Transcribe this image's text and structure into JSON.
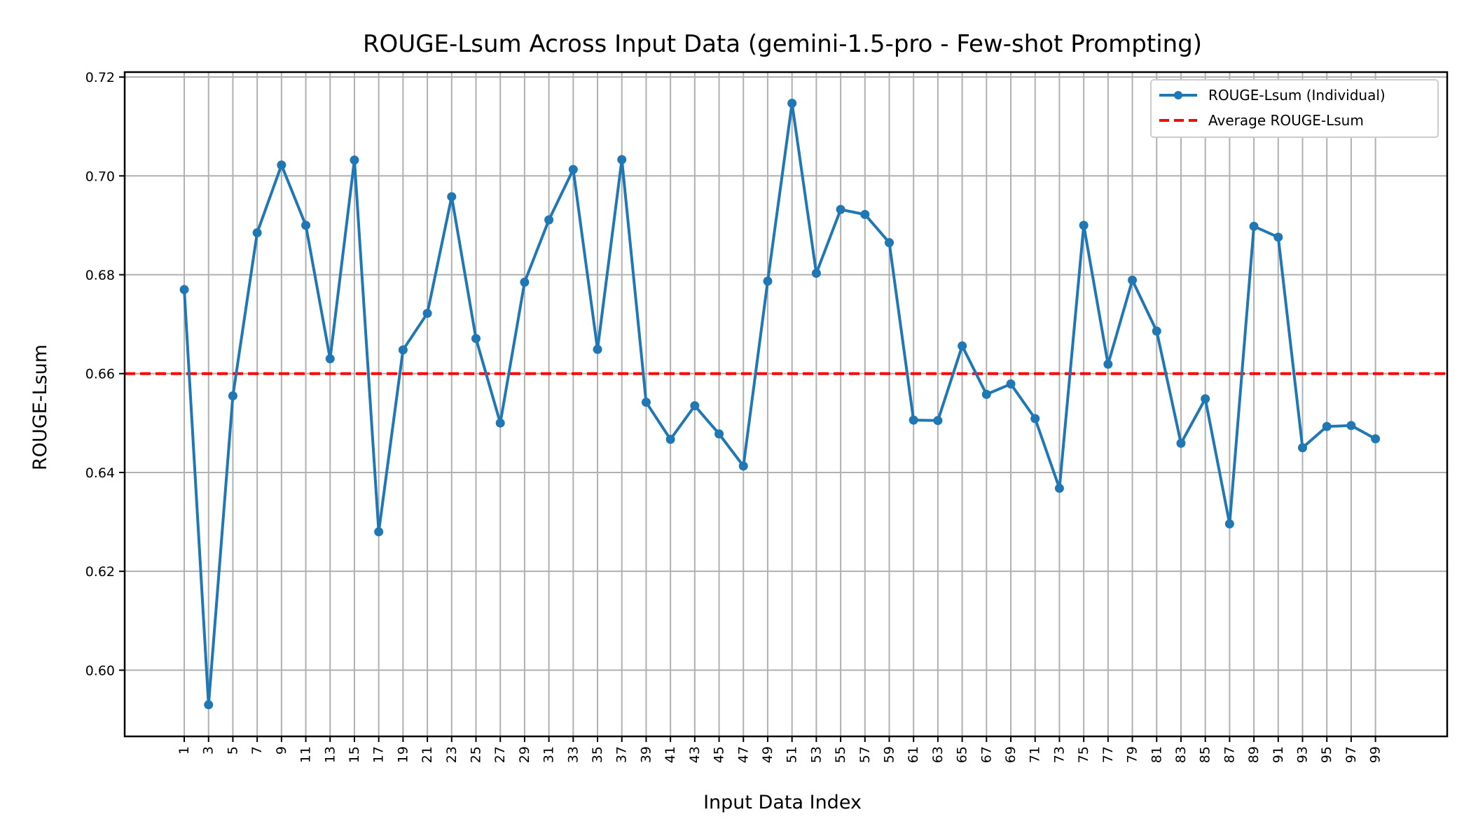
{
  "chart_data": {
    "type": "line",
    "title": "ROUGE-Lsum Across Input Data (gemini-1.5-pro - Few-shot Prompting)",
    "xlabel": "Input Data Index",
    "ylabel": "ROUGE-Lsum",
    "x": [
      1,
      3,
      5,
      7,
      9,
      11,
      13,
      15,
      17,
      19,
      21,
      23,
      25,
      27,
      29,
      31,
      33,
      35,
      37,
      39,
      41,
      43,
      45,
      47,
      49,
      51,
      53,
      55,
      57,
      59,
      61,
      63,
      65,
      67,
      69,
      71,
      73,
      75,
      77,
      79,
      81,
      83,
      85,
      87,
      89,
      91,
      93,
      95,
      97,
      99
    ],
    "x_tick_labels": [
      "1",
      "3",
      "5",
      "7",
      "9",
      "11",
      "13",
      "15",
      "17",
      "19",
      "21",
      "23",
      "25",
      "27",
      "29",
      "31",
      "33",
      "35",
      "37",
      "39",
      "41",
      "43",
      "45",
      "47",
      "49",
      "51",
      "53",
      "55",
      "57",
      "59",
      "61",
      "63",
      "65",
      "67",
      "69",
      "71",
      "73",
      "75",
      "77",
      "79",
      "81",
      "83",
      "85",
      "87",
      "89",
      "91",
      "93",
      "95",
      "97",
      "99"
    ],
    "xlim": [
      -3.9,
      104.9
    ],
    "ylim": [
      0.5866,
      0.721
    ],
    "y_ticks": [
      0.6,
      0.62,
      0.64,
      0.66,
      0.68,
      0.7,
      0.72
    ],
    "y_tick_labels": [
      "0.60",
      "0.62",
      "0.64",
      "0.66",
      "0.68",
      "0.70",
      "0.72"
    ],
    "grid": true,
    "legend_position": "top-right",
    "series": [
      {
        "name": "ROUGE-Lsum (Individual)",
        "color": "#1f77b4",
        "values": [
          0.677,
          0.593,
          0.6555,
          0.6885,
          0.7022,
          0.69,
          0.663,
          0.7032,
          0.628,
          0.6648,
          0.6722,
          0.6958,
          0.6671,
          0.65,
          0.6785,
          0.6911,
          0.7013,
          0.6649,
          0.7033,
          0.6542,
          0.6467,
          0.6535,
          0.6478,
          0.6413,
          0.6787,
          0.7147,
          0.6803,
          0.6932,
          0.6922,
          0.6865,
          0.6506,
          0.6505,
          0.6656,
          0.6558,
          0.6579,
          0.6509,
          0.6368,
          0.69,
          0.6619,
          0.6789,
          0.6686,
          0.6459,
          0.6549,
          0.6296,
          0.6898,
          0.6876,
          0.645,
          0.6493,
          0.6495,
          0.6468
        ]
      }
    ],
    "average": {
      "name": "Average ROUGE-Lsum",
      "value": 0.66,
      "color": "#ff0000"
    }
  }
}
